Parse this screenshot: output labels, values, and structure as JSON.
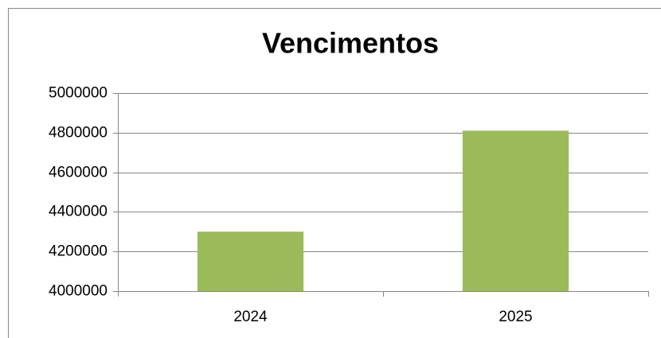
{
  "chart_data": {
    "type": "bar",
    "title": "Vencimentos",
    "categories": [
      "2024",
      "2025"
    ],
    "values": [
      4300000,
      4810000
    ],
    "color": "#9bbb59",
    "ylim": [
      4000000,
      5000000
    ],
    "yticks": [
      4000000,
      4200000,
      4400000,
      4600000,
      4800000,
      5000000
    ],
    "grid": true
  }
}
